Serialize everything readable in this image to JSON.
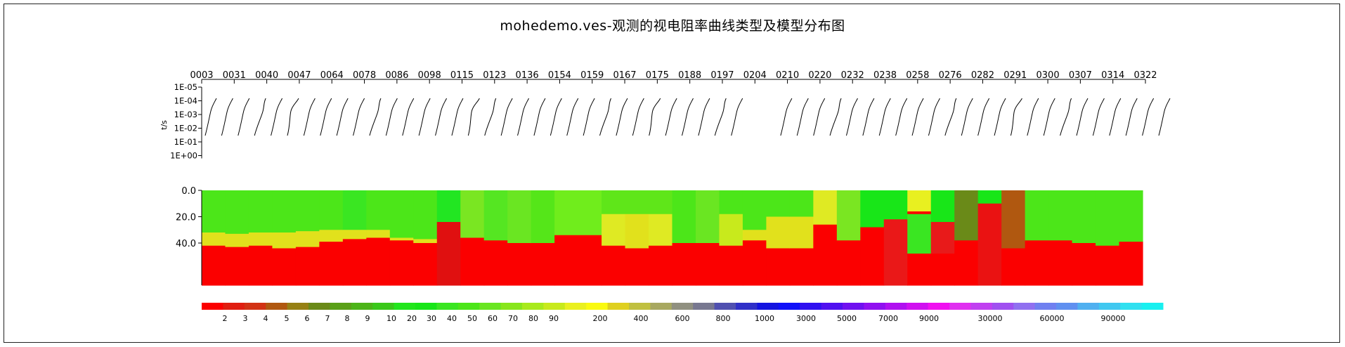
{
  "title": "mohedemo.ves-观测的视电阻率曲线类型及模型分布图",
  "chart_data": [
    {
      "type": "line",
      "panel": "sounding-curves",
      "ylabel": "t/s",
      "y_ticks": [
        "1E-05",
        "1E-04",
        "1E-03",
        "1E-02",
        "1E-01",
        "1E+00"
      ],
      "station_labels": [
        "0003",
        "0031",
        "0040",
        "0047",
        "0064",
        "0078",
        "0086",
        "0098",
        "0115",
        "0123",
        "0136",
        "0154",
        "0159",
        "0167",
        "0175",
        "0188",
        "0197",
        "0204",
        "0210",
        "0220",
        "0232",
        "0238",
        "0258",
        "0276",
        "0282",
        "0291",
        "0300",
        "0307",
        "0314",
        "0322"
      ],
      "curve_count": 59,
      "missing_curve_indices": [
        33,
        34
      ]
    },
    {
      "type": "heatmap",
      "panel": "model-distribution",
      "y_ticks": [
        "0.0",
        "20.0",
        "40.0"
      ],
      "depth_range": [
        0,
        72
      ],
      "columns": [
        {
          "layers": [
            [
              0,
              32,
              "#4ce619"
            ],
            [
              32,
              42,
              "#e1e11c"
            ],
            [
              42,
              72,
              "#fb0000"
            ]
          ]
        },
        {
          "layers": [
            [
              0,
              33,
              "#4ce619"
            ],
            [
              33,
              43,
              "#e1e11c"
            ],
            [
              43,
              72,
              "#fb0000"
            ]
          ]
        },
        {
          "layers": [
            [
              0,
              32,
              "#4ce619"
            ],
            [
              32,
              42,
              "#e1e11c"
            ],
            [
              42,
              72,
              "#fb0000"
            ]
          ]
        },
        {
          "layers": [
            [
              0,
              32,
              "#4ce619"
            ],
            [
              32,
              44,
              "#e1e11c"
            ],
            [
              44,
              72,
              "#fb0000"
            ]
          ]
        },
        {
          "layers": [
            [
              0,
              31,
              "#4ce619"
            ],
            [
              31,
              43,
              "#e1e11c"
            ],
            [
              43,
              72,
              "#fb0000"
            ]
          ]
        },
        {
          "layers": [
            [
              0,
              30,
              "#4ce619"
            ],
            [
              30,
              39,
              "#e1e11c"
            ],
            [
              39,
              72,
              "#fb0000"
            ]
          ]
        },
        {
          "layers": [
            [
              0,
              30,
              "#3ae622"
            ],
            [
              30,
              37,
              "#e1e11c"
            ],
            [
              37,
              72,
              "#fb0000"
            ]
          ]
        },
        {
          "layers": [
            [
              0,
              30,
              "#4ce619"
            ],
            [
              30,
              36,
              "#e1e11c"
            ],
            [
              36,
              72,
              "#fb0000"
            ]
          ]
        },
        {
          "layers": [
            [
              0,
              36,
              "#4ce619"
            ],
            [
              36,
              38,
              "#e1e11c"
            ],
            [
              38,
              72,
              "#fb0000"
            ]
          ]
        },
        {
          "layers": [
            [
              0,
              37,
              "#4ce619"
            ],
            [
              37,
              40,
              "#e1e11c"
            ],
            [
              40,
              72,
              "#fb0000"
            ]
          ]
        },
        {
          "layers": [
            [
              0,
              24,
              "#22e622"
            ],
            [
              24,
              72,
              "#e01010"
            ]
          ]
        },
        {
          "layers": [
            [
              0,
              36,
              "#7ae622"
            ],
            [
              36,
              72,
              "#fb0000"
            ]
          ]
        },
        {
          "layers": [
            [
              0,
              38,
              "#55e622"
            ],
            [
              38,
              72,
              "#fb0000"
            ]
          ]
        },
        {
          "layers": [
            [
              0,
              40,
              "#6ae622"
            ],
            [
              40,
              72,
              "#fb0000"
            ]
          ]
        },
        {
          "layers": [
            [
              0,
              40,
              "#55e619"
            ],
            [
              40,
              72,
              "#fb0000"
            ]
          ]
        },
        {
          "layers": [
            [
              0,
              34,
              "#70ed1c"
            ],
            [
              34,
              72,
              "#fb0000"
            ]
          ]
        },
        {
          "layers": [
            [
              0,
              34,
              "#70ed1c"
            ],
            [
              34,
              72,
              "#fb0000"
            ]
          ]
        },
        {
          "layers": [
            [
              0,
              18,
              "#5fe619"
            ],
            [
              18,
              42,
              "#dfea23"
            ],
            [
              42,
              72,
              "#fb0000"
            ]
          ]
        },
        {
          "layers": [
            [
              0,
              18,
              "#5fe619"
            ],
            [
              18,
              44,
              "#e1e11c"
            ],
            [
              44,
              72,
              "#fb0000"
            ]
          ]
        },
        {
          "layers": [
            [
              0,
              18,
              "#5fe619"
            ],
            [
              18,
              42,
              "#dfea23"
            ],
            [
              42,
              72,
              "#fb0000"
            ]
          ]
        },
        {
          "layers": [
            [
              0,
              40,
              "#4ce619"
            ],
            [
              40,
              72,
              "#fb0000"
            ]
          ]
        },
        {
          "layers": [
            [
              0,
              40,
              "#6ae622"
            ],
            [
              40,
              72,
              "#fb0000"
            ]
          ]
        },
        {
          "layers": [
            [
              0,
              18,
              "#4ce619"
            ],
            [
              18,
              42,
              "#c8ea1c"
            ],
            [
              42,
              72,
              "#fb0000"
            ]
          ]
        },
        {
          "layers": [
            [
              0,
              30,
              "#4ce619"
            ],
            [
              30,
              38,
              "#e1e11c"
            ],
            [
              38,
              72,
              "#fb0000"
            ]
          ]
        },
        {
          "layers": [
            [
              0,
              20,
              "#4ce619"
            ],
            [
              20,
              44,
              "#e1e11c"
            ],
            [
              44,
              72,
              "#fb0000"
            ]
          ]
        },
        {
          "layers": [
            [
              0,
              20,
              "#4ce619"
            ],
            [
              20,
              44,
              "#e1e11c"
            ],
            [
              44,
              72,
              "#fb0000"
            ]
          ]
        },
        {
          "layers": [
            [
              0,
              26,
              "#dfea23"
            ],
            [
              26,
              72,
              "#fb0000"
            ]
          ]
        },
        {
          "layers": [
            [
              0,
              38,
              "#7ae622"
            ],
            [
              38,
              72,
              "#fb0000"
            ]
          ]
        },
        {
          "layers": [
            [
              0,
              28,
              "#18e618"
            ],
            [
              28,
              72,
              "#fb0000"
            ]
          ]
        },
        {
          "layers": [
            [
              0,
              22,
              "#18e618"
            ],
            [
              22,
              72,
              "#ea1818"
            ]
          ]
        },
        {
          "layers": [
            [
              0,
              16,
              "#e8f020"
            ],
            [
              16,
              18,
              "#fb0000"
            ],
            [
              18,
              48,
              "#3ae622"
            ],
            [
              48,
              72,
              "#fb0000"
            ]
          ]
        },
        {
          "layers": [
            [
              0,
              24,
              "#18e618"
            ],
            [
              24,
              48,
              "#e81a1a"
            ],
            [
              48,
              72,
              "#fb0000"
            ]
          ]
        },
        {
          "layers": [
            [
              0,
              38,
              "#6a8a18"
            ],
            [
              38,
              72,
              "#fb0000"
            ]
          ]
        },
        {
          "layers": [
            [
              0,
              10,
              "#18e618"
            ],
            [
              10,
              72,
              "#ea1212"
            ]
          ]
        },
        {
          "layers": [
            [
              0,
              44,
              "#b05810"
            ],
            [
              44,
              72,
              "#fb0000"
            ]
          ]
        },
        {
          "layers": [
            [
              0,
              38,
              "#4ce619"
            ],
            [
              38,
              72,
              "#fb0000"
            ]
          ]
        },
        {
          "layers": [
            [
              0,
              38,
              "#4ce619"
            ],
            [
              38,
              72,
              "#fb0000"
            ]
          ]
        },
        {
          "layers": [
            [
              0,
              40,
              "#4ce619"
            ],
            [
              40,
              72,
              "#fb0000"
            ]
          ]
        },
        {
          "layers": [
            [
              0,
              42,
              "#4ce619"
            ],
            [
              42,
              72,
              "#fb0000"
            ]
          ]
        },
        {
          "layers": [
            [
              0,
              39,
              "#4ce619"
            ],
            [
              39,
              72,
              "#fb0000"
            ]
          ]
        }
      ]
    },
    {
      "type": "legend",
      "panel": "color-scale",
      "colors": [
        "#fb0000",
        "#e01e10",
        "#d23214",
        "#b05810",
        "#968014",
        "#6a8a18",
        "#5aa018",
        "#4cb418",
        "#3ac81a",
        "#22e61c",
        "#18e618",
        "#3ae622",
        "#4ce619",
        "#6ae622",
        "#88e61c",
        "#a8ea1c",
        "#c8ea1c",
        "#eaf020",
        "#fafa10",
        "#dfd020",
        "#c0c040",
        "#a8a860",
        "#909080",
        "#787890",
        "#5050b0",
        "#3030c8",
        "#1414e0",
        "#1010f8",
        "#3010f0",
        "#5010f0",
        "#7010f0",
        "#9010f0",
        "#b010f0",
        "#d010f0",
        "#f010f0",
        "#e030f0",
        "#c040f0",
        "#a050f0",
        "#9070f0",
        "#7080f0",
        "#6090f0",
        "#50b0f0",
        "#40c8f0",
        "#30e0f0",
        "#18f0f0"
      ],
      "labels": [
        "2",
        "3",
        "4",
        "5",
        "6",
        "7",
        "8",
        "9",
        "10",
        "20",
        "30",
        "40",
        "50",
        "60",
        "70",
        "80",
        "90",
        "200",
        "400",
        "600",
        "800",
        "1000",
        "3000",
        "5000",
        "7000",
        "9000",
        "30000",
        "60000",
        "90000"
      ]
    }
  ]
}
